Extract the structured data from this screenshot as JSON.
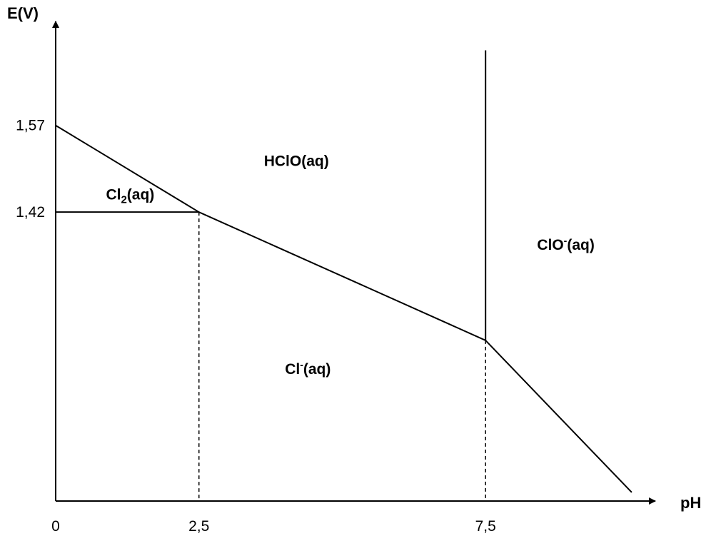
{
  "chart_data": {
    "type": "line",
    "title": "",
    "axes": {
      "y_label": "E(V)",
      "x_label": "pH",
      "x_ticks": [
        "0",
        "2,5",
        "7,5"
      ],
      "y_ticks": [
        "1,57",
        "1,42"
      ]
    },
    "x_tick_values": [
      0,
      2.5,
      7.5
    ],
    "y_tick_values": [
      1.57,
      1.42
    ],
    "xlim": [
      0,
      10.3
    ],
    "ylim": [
      0.92,
      1.75
    ],
    "grid": false,
    "species": {
      "hclo": {
        "main": "HClO(aq)"
      },
      "cl2": {
        "main": "Cl",
        "sub": "2",
        "tail": "(aq)"
      },
      "clo": {
        "main": "ClO",
        "sup": "-",
        "tail": "(aq)"
      },
      "cl": {
        "main": "Cl",
        "sup": "-",
        "tail": "(aq)"
      }
    },
    "label_positions": [
      {
        "species": "hclo",
        "x": 4.2,
        "y": 1.5
      },
      {
        "species": "cl2",
        "x": 1.3,
        "y": 1.442
      },
      {
        "species": "clo",
        "x": 8.9,
        "y": 1.355
      },
      {
        "species": "cl",
        "x": 4.4,
        "y": 1.14
      }
    ],
    "boundaries": [
      {
        "kind": "solid",
        "points": [
          [
            0,
            1.57
          ],
          [
            2.5,
            1.42
          ]
        ]
      },
      {
        "kind": "solid",
        "points": [
          [
            0,
            1.42
          ],
          [
            2.5,
            1.42
          ]
        ]
      },
      {
        "kind": "solid",
        "points": [
          [
            2.5,
            1.42
          ],
          [
            7.5,
            1.198
          ]
        ]
      },
      {
        "kind": "solid",
        "points": [
          [
            7.5,
            1.198
          ],
          [
            7.5,
            1.7
          ]
        ]
      },
      {
        "kind": "solid",
        "points": [
          [
            7.5,
            1.198
          ],
          [
            10.05,
            0.935
          ]
        ]
      },
      {
        "kind": "dashed",
        "points": [
          [
            2.5,
            1.42
          ],
          [
            2.5,
            0.92
          ]
        ]
      },
      {
        "kind": "dashed",
        "points": [
          [
            7.5,
            1.198
          ],
          [
            7.5,
            0.92
          ]
        ]
      }
    ]
  }
}
